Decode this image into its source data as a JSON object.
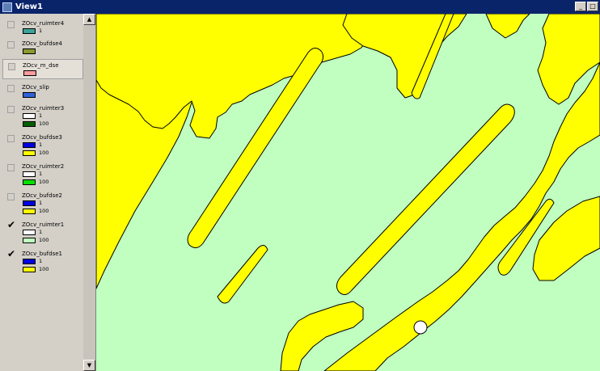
{
  "window": {
    "title": "View1",
    "buttons": [
      "_",
      "□"
    ]
  },
  "colors": {
    "map_green": "#c0ffc0",
    "map_yellow": "#ffff00",
    "titlebar": "#0a246a"
  },
  "toc": {
    "layers": [
      {
        "name": "ZOcv_ruimter4",
        "checked": false,
        "selected": false,
        "legend": [
          {
            "color": "#3aa39a",
            "label": "1"
          }
        ]
      },
      {
        "name": "ZOcv_bufdse4",
        "checked": false,
        "selected": false,
        "legend": [
          {
            "color": "#8a9a2c",
            "label": ""
          }
        ]
      },
      {
        "name": "ZOcv_m_dse",
        "checked": false,
        "selected": true,
        "legend": [
          {
            "color": "#ff9c9c",
            "label": ""
          }
        ]
      },
      {
        "name": "ZOcv_slip",
        "checked": false,
        "selected": false,
        "legend": [
          {
            "color": "#3062d8",
            "label": ""
          }
        ]
      },
      {
        "name": "ZOcv_ruimter3",
        "checked": false,
        "selected": false,
        "legend": [
          {
            "color": "#ffffff",
            "label": "1"
          },
          {
            "color": "#006000",
            "label": "100"
          }
        ]
      },
      {
        "name": "ZOcv_bufdse3",
        "checked": false,
        "selected": false,
        "legend": [
          {
            "color": "#0000e0",
            "label": "1"
          },
          {
            "color": "#ffff00",
            "label": "100"
          }
        ]
      },
      {
        "name": "ZOcv_ruimter2",
        "checked": false,
        "selected": false,
        "legend": [
          {
            "color": "#ffffff",
            "label": "1"
          },
          {
            "color": "#00e000",
            "label": "100"
          }
        ]
      },
      {
        "name": "ZOcv_bufdse2",
        "checked": false,
        "selected": false,
        "legend": [
          {
            "color": "#0000e0",
            "label": "1"
          },
          {
            "color": "#ffff00",
            "label": "100"
          }
        ]
      },
      {
        "name": "ZOcv_ruimter1",
        "checked": true,
        "selected": false,
        "legend": [
          {
            "color": "#ffffff",
            "label": "1"
          },
          {
            "color": "#c0ffc0",
            "label": "100"
          }
        ]
      },
      {
        "name": "ZOcv_bufdse1",
        "checked": true,
        "selected": false,
        "legend": [
          {
            "color": "#0000e0",
            "label": "1"
          },
          {
            "color": "#ffff00",
            "label": "100"
          }
        ]
      }
    ]
  }
}
